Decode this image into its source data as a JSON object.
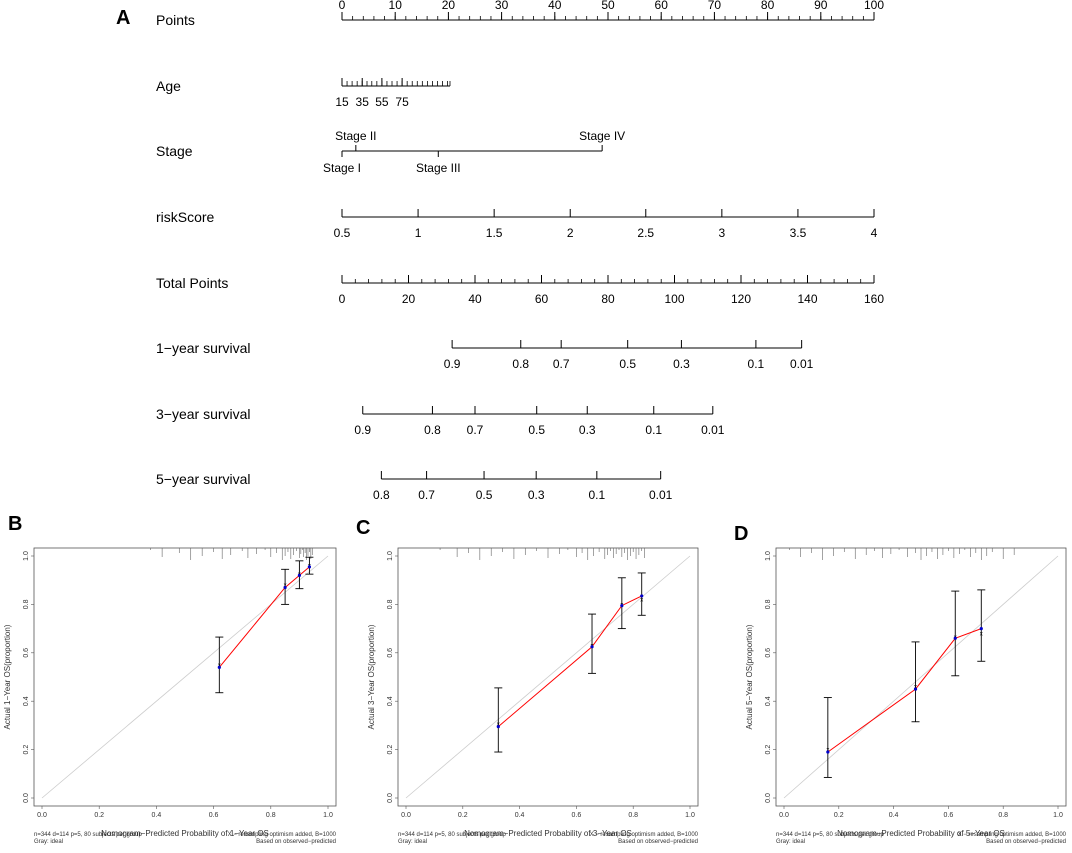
{
  "chart_data": [
    {
      "panel": "A",
      "type": "nomogram",
      "scales": [
        {
          "name": "Points",
          "min": 0,
          "max": 100,
          "labels": [
            {
              "v": 0,
              "t": "0"
            },
            {
              "v": 10,
              "t": "10"
            },
            {
              "v": 20,
              "t": "20"
            },
            {
              "v": 30,
              "t": "30"
            },
            {
              "v": 40,
              "t": "40"
            },
            {
              "v": 50,
              "t": "50"
            },
            {
              "v": 60,
              "t": "60"
            },
            {
              "v": 70,
              "t": "70"
            },
            {
              "v": 80,
              "t": "80"
            },
            {
              "v": 90,
              "t": "90"
            },
            {
              "v": 100,
              "t": "100"
            }
          ],
          "minor_step": 2
        },
        {
          "name": "Age",
          "labels": [
            {
              "v": 0,
              "t": "15"
            },
            {
              "v": 3.8,
              "t": "35"
            },
            {
              "v": 7.5,
              "t": "55"
            },
            {
              "v": 11.3,
              "t": "75"
            }
          ],
          "ticks": [
            0,
            0.95,
            1.9,
            2.85,
            3.8,
            4.7,
            5.6,
            6.55,
            7.5,
            8.45,
            9.4,
            10.35,
            11.3,
            12.25,
            13.2,
            14.15,
            15.1,
            16.05,
            17,
            17.95,
            18.9,
            19.85,
            20.3
          ]
        },
        {
          "name": "Stage",
          "labels": [
            {
              "v": 0,
              "t": "Stage I",
              "pos": "below"
            },
            {
              "v": 2.6,
              "t": "Stage II",
              "pos": "above"
            },
            {
              "v": 18.1,
              "t": "Stage III",
              "pos": "below"
            },
            {
              "v": 48.9,
              "t": "Stage IV",
              "pos": "above"
            }
          ]
        },
        {
          "name": "riskScore",
          "labels": [
            {
              "v": 0,
              "t": "0.5"
            },
            {
              "v": 14.3,
              "t": "1"
            },
            {
              "v": 28.6,
              "t": "1.5"
            },
            {
              "v": 42.9,
              "t": "2"
            },
            {
              "v": 57.1,
              "t": "2.5"
            },
            {
              "v": 71.4,
              "t": "3"
            },
            {
              "v": 85.7,
              "t": "3.5"
            },
            {
              "v": 100,
              "t": "4"
            }
          ]
        },
        {
          "name": "Total Points",
          "min": 0,
          "max": 160,
          "labels": [
            {
              "v": 0,
              "t": "0"
            },
            {
              "v": 12.5,
              "t": "20"
            },
            {
              "v": 25,
              "t": "40"
            },
            {
              "v": 37.5,
              "t": "60"
            },
            {
              "v": 50,
              "t": "80"
            },
            {
              "v": 62.5,
              "t": "100"
            },
            {
              "v": 75,
              "t": "120"
            },
            {
              "v": 87.5,
              "t": "140"
            },
            {
              "v": 100,
              "t": "160"
            }
          ],
          "minor_step": 2.5
        },
        {
          "name": "1−year survival",
          "labels": [
            {
              "v": 20.7,
              "t": "0.9"
            },
            {
              "v": 33.6,
              "t": "0.8"
            },
            {
              "v": 41.2,
              "t": "0.7"
            },
            {
              "v": 53.7,
              "t": "0.5"
            },
            {
              "v": 63.8,
              "t": "0.3"
            },
            {
              "v": 77.8,
              "t": "0.1"
            },
            {
              "v": 86.4,
              "t": "0.01"
            }
          ]
        },
        {
          "name": "3−year survival",
          "labels": [
            {
              "v": 3.9,
              "t": "0.9"
            },
            {
              "v": 17,
              "t": "0.8"
            },
            {
              "v": 25,
              "t": "0.7"
            },
            {
              "v": 36.6,
              "t": "0.5"
            },
            {
              "v": 46.1,
              "t": "0.3"
            },
            {
              "v": 58.6,
              "t": "0.1"
            },
            {
              "v": 69.7,
              "t": "0.01"
            }
          ]
        },
        {
          "name": "5−year survival",
          "labels": [
            {
              "v": 7.4,
              "t": "0.8"
            },
            {
              "v": 15.9,
              "t": "0.7"
            },
            {
              "v": 26.7,
              "t": "0.5"
            },
            {
              "v": 36.5,
              "t": "0.3"
            },
            {
              "v": 47.9,
              "t": "0.1"
            },
            {
              "v": 59.9,
              "t": "0.01"
            }
          ]
        }
      ]
    },
    {
      "panel": "B",
      "type": "calibration",
      "xlabel": "Nomogram−Predicted Probability of 1−Year OS",
      "ylabel": "Actual 1−Year OS(proportion)",
      "xlim": [
        0,
        1
      ],
      "ylim": [
        0,
        1
      ],
      "ticks": [
        "0.0",
        "0.2",
        "0.4",
        "0.6",
        "0.8",
        "1.0"
      ],
      "points": [
        {
          "x": 0.62,
          "y": 0.54,
          "lo": 0.435,
          "hi": 0.665,
          "c": 0.55
        },
        {
          "x": 0.85,
          "y": 0.87,
          "lo": 0.8,
          "hi": 0.945,
          "c": 0.88
        },
        {
          "x": 0.9,
          "y": 0.92,
          "lo": 0.865,
          "hi": 0.98,
          "c": 0.925
        },
        {
          "x": 0.935,
          "y": 0.955,
          "lo": 0.925,
          "hi": 0.995,
          "c": 0.96
        }
      ],
      "rug": [
        0.38,
        0.42,
        0.48,
        0.52,
        0.56,
        0.6,
        0.63,
        0.66,
        0.7,
        0.72,
        0.75,
        0.78,
        0.8,
        0.82,
        0.84,
        0.85,
        0.86,
        0.87,
        0.88,
        0.89,
        0.9,
        0.905,
        0.91,
        0.915,
        0.92,
        0.925,
        0.93,
        0.935,
        0.94,
        0.945
      ],
      "note_left": "n=344 d=114 p=5, 80 subjects per group",
      "note_left2": "Gray: ideal",
      "note_right": "X − resampling optimism added, B=1000",
      "note_right2": "Based on observed−predicted"
    },
    {
      "panel": "C",
      "type": "calibration",
      "xlabel": "Nomogram−Predicted Probability of 3−Year OS",
      "ylabel": "Actual 3−Year OS(proportion)",
      "xlim": [
        0,
        1
      ],
      "ylim": [
        0,
        1
      ],
      "ticks": [
        "0.0",
        "0.2",
        "0.4",
        "0.6",
        "0.8",
        "1.0"
      ],
      "points": [
        {
          "x": 0.325,
          "y": 0.295,
          "lo": 0.19,
          "hi": 0.455,
          "c": 0.305
        },
        {
          "x": 0.655,
          "y": 0.625,
          "lo": 0.515,
          "hi": 0.76,
          "c": 0.63
        },
        {
          "x": 0.76,
          "y": 0.795,
          "lo": 0.7,
          "hi": 0.91,
          "c": 0.8
        },
        {
          "x": 0.83,
          "y": 0.835,
          "lo": 0.755,
          "hi": 0.93,
          "c": 0.82
        }
      ],
      "rug": [
        0.12,
        0.18,
        0.22,
        0.26,
        0.3,
        0.34,
        0.38,
        0.42,
        0.46,
        0.5,
        0.54,
        0.57,
        0.6,
        0.62,
        0.64,
        0.66,
        0.68,
        0.7,
        0.71,
        0.72,
        0.73,
        0.74,
        0.75,
        0.76,
        0.77,
        0.78,
        0.79,
        0.8,
        0.81,
        0.82,
        0.83,
        0.84
      ],
      "note_left": "n=344 d=114 p=5, 80 subjects per group",
      "note_left2": "Gray: ideal",
      "note_right": "X − resampling optimism added, B=1000",
      "note_right2": "Based on observed−predicted"
    },
    {
      "panel": "D",
      "type": "calibration",
      "xlabel": "Nomogram−Predicted Probability of 5−Year OS",
      "ylabel": "Actual 5−Year OS(proportion)",
      "xlim": [
        0,
        1
      ],
      "ylim": [
        0,
        1
      ],
      "ticks": [
        "0.0",
        "0.2",
        "0.4",
        "0.6",
        "0.8",
        "1.0"
      ],
      "points": [
        {
          "x": 0.16,
          "y": 0.19,
          "lo": 0.085,
          "hi": 0.415,
          "c": 0.2
        },
        {
          "x": 0.48,
          "y": 0.45,
          "lo": 0.315,
          "hi": 0.645,
          "c": 0.46
        },
        {
          "x": 0.625,
          "y": 0.66,
          "lo": 0.505,
          "hi": 0.855,
          "c": 0.665
        },
        {
          "x": 0.72,
          "y": 0.7,
          "lo": 0.565,
          "hi": 0.86,
          "c": 0.68
        }
      ],
      "rug": [
        0.02,
        0.06,
        0.1,
        0.14,
        0.18,
        0.22,
        0.26,
        0.3,
        0.33,
        0.36,
        0.39,
        0.42,
        0.45,
        0.48,
        0.5,
        0.52,
        0.54,
        0.56,
        0.58,
        0.6,
        0.62,
        0.64,
        0.66,
        0.68,
        0.7,
        0.72,
        0.74,
        0.76,
        0.8,
        0.84
      ],
      "note_left": "n=344 d=114 p=5, 80 subjects per group",
      "note_left2": "Gray: ideal",
      "note_right": "X − resampling optimism added, B=1000",
      "note_right2": "Based on observed−predicted"
    }
  ],
  "colors": {
    "fit": "#ff0000",
    "ideal": "#cccccc",
    "point": "#0000cc",
    "bar": "#000000"
  }
}
